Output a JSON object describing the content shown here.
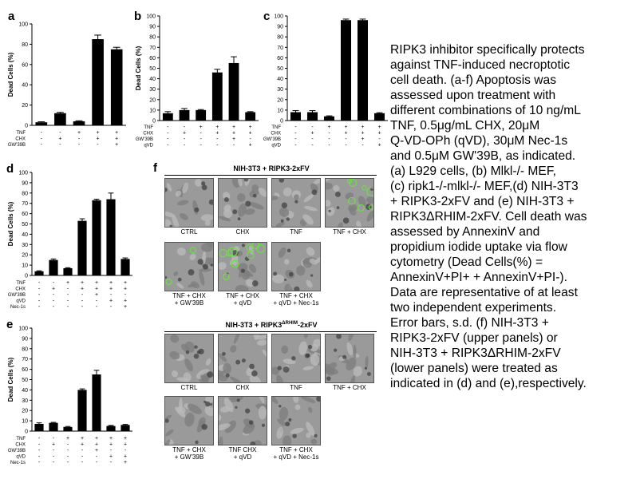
{
  "panel_labels": {
    "a": "a",
    "b": "b",
    "c": "c",
    "d": "d",
    "e": "e",
    "f": "f"
  },
  "treatment_symbols": {
    "plus": "+",
    "minus": "-"
  },
  "chart_data": [
    {
      "id": "a",
      "type": "bar",
      "ylabel": "Dead Cells (%)",
      "ylim": [
        0,
        100
      ],
      "yticks": [
        0,
        20,
        40,
        60,
        80,
        100
      ],
      "values": [
        3,
        12,
        4,
        85,
        75
      ],
      "errors": [
        0.5,
        0.8,
        0.5,
        4,
        2
      ],
      "treatments": [
        {
          "name": "TNF",
          "marks": [
            "-",
            "-",
            "+",
            "+",
            "+"
          ]
        },
        {
          "name": "CHX",
          "marks": [
            "-",
            "+",
            "-",
            "+",
            "+"
          ]
        },
        {
          "name": "GW'39B",
          "marks": [
            "-",
            "-",
            "-",
            "-",
            "+"
          ]
        }
      ]
    },
    {
      "id": "b",
      "type": "bar",
      "ylabel": "Dead Cells (%)",
      "ylim": [
        0,
        100
      ],
      "yticks": [
        0,
        10,
        20,
        30,
        40,
        50,
        60,
        70,
        80,
        90,
        100
      ],
      "values": [
        7,
        10,
        10,
        46,
        55,
        8
      ],
      "errors": [
        1.5,
        1.5,
        0.5,
        3,
        6,
        0.5
      ],
      "treatments": [
        {
          "name": "TNF",
          "marks": [
            "-",
            "-",
            "+",
            "+",
            "+",
            "+"
          ]
        },
        {
          "name": "CHX",
          "marks": [
            "-",
            "+",
            "-",
            "+",
            "+",
            "+"
          ]
        },
        {
          "name": "GW'39B",
          "marks": [
            "-",
            "-",
            "-",
            "-",
            "+",
            "-"
          ]
        },
        {
          "name": "qVD",
          "marks": [
            "-",
            "-",
            "-",
            "-",
            "-",
            "+"
          ]
        }
      ]
    },
    {
      "id": "c",
      "type": "bar",
      "ylabel": "",
      "ylim": [
        0,
        100
      ],
      "yticks": [
        0,
        10,
        20,
        30,
        40,
        50,
        60,
        70,
        80,
        90,
        100
      ],
      "values": [
        8,
        8,
        4,
        96,
        96,
        7
      ],
      "errors": [
        1.5,
        1.5,
        0.5,
        1,
        1,
        0.5
      ],
      "treatments": [
        {
          "name": "TNF",
          "marks": [
            "-",
            "-",
            "+",
            "+",
            "+",
            "+"
          ]
        },
        {
          "name": "CHX",
          "marks": [
            "-",
            "+",
            "-",
            "+",
            "+",
            "+"
          ]
        },
        {
          "name": "GW'39B",
          "marks": [
            "-",
            "-",
            "-",
            "-",
            "+",
            "-"
          ]
        },
        {
          "name": "qVD",
          "marks": [
            "-",
            "-",
            "-",
            "-",
            "-",
            "+"
          ]
        }
      ]
    },
    {
      "id": "d",
      "type": "bar",
      "ylabel": "Dead Cells (%)",
      "ylim": [
        0,
        100
      ],
      "yticks": [
        0,
        10,
        20,
        30,
        40,
        50,
        60,
        70,
        80,
        90,
        100
      ],
      "values": [
        4,
        15,
        7,
        53,
        73,
        74,
        16
      ],
      "errors": [
        0.5,
        1,
        0.5,
        2,
        1,
        6,
        1
      ],
      "treatments": [
        {
          "name": "TNF",
          "marks": [
            "-",
            "-",
            "+",
            "+",
            "+",
            "+",
            "+"
          ]
        },
        {
          "name": "CHX",
          "marks": [
            "-",
            "+",
            "-",
            "+",
            "+",
            "+",
            "+"
          ]
        },
        {
          "name": "GW'39B",
          "marks": [
            "-",
            "-",
            "-",
            "-",
            "+",
            "-",
            "-"
          ]
        },
        {
          "name": "qVD",
          "marks": [
            "-",
            "-",
            "-",
            "-",
            "-",
            "+",
            "+"
          ]
        },
        {
          "name": "Nec-1s",
          "marks": [
            "-",
            "-",
            "-",
            "-",
            "-",
            "-",
            "+"
          ]
        }
      ]
    },
    {
      "id": "e",
      "type": "bar",
      "ylabel": "Dead Cells (%)",
      "ylim": [
        0,
        100
      ],
      "yticks": [
        0,
        10,
        20,
        30,
        40,
        50,
        60,
        70,
        80,
        90,
        100
      ],
      "values": [
        7,
        8,
        4,
        40,
        55,
        5,
        6
      ],
      "errors": [
        1,
        0.5,
        0.5,
        1,
        4,
        0.5,
        0.5
      ],
      "treatments": [
        {
          "name": "TNF",
          "marks": [
            "-",
            "-",
            "+",
            "+",
            "+",
            "+",
            "+"
          ]
        },
        {
          "name": "CHX",
          "marks": [
            "-",
            "+",
            "-",
            "+",
            "+",
            "+",
            "+"
          ]
        },
        {
          "name": "GW'39B",
          "marks": [
            "-",
            "-",
            "-",
            "-",
            "+",
            "-",
            "-"
          ]
        },
        {
          "name": "qVD",
          "marks": [
            "-",
            "-",
            "-",
            "-",
            "-",
            "+",
            "+"
          ]
        },
        {
          "name": "Nec-1s",
          "marks": [
            "-",
            "-",
            "-",
            "-",
            "-",
            "-",
            "+"
          ]
        }
      ]
    }
  ],
  "micrographs": {
    "upper": {
      "title": "NIH-3T3 + RIPK3-2xFV",
      "tiles": [
        {
          "caption": "CTRL",
          "caption2": "",
          "green": 0
        },
        {
          "caption": "CHX",
          "caption2": "",
          "green": 0
        },
        {
          "caption": "TNF",
          "caption2": "",
          "green": 0
        },
        {
          "caption": "TNF + CHX",
          "caption2": "",
          "green": 7
        },
        {
          "caption": "TNF + CHX",
          "caption2": "+ GW'39B",
          "green": 2
        },
        {
          "caption": "TNF + CHX",
          "caption2": "+ qVD",
          "green": 9
        },
        {
          "caption": "TNF + CHX",
          "caption2": "+ qVD + Nec-1s",
          "green": 0
        }
      ]
    },
    "lower": {
      "title_main": "NIH-3T3 + RIPK3",
      "title_sup": "ΔRHIM",
      "title_end": "-2xFV",
      "tiles": [
        {
          "caption": "CTRL",
          "caption2": "",
          "green": 0
        },
        {
          "caption": "CHX",
          "caption2": "",
          "green": 0
        },
        {
          "caption": "TNF",
          "caption2": "",
          "green": 0
        },
        {
          "caption": "TNF + CHX",
          "caption2": "",
          "green": 0
        },
        {
          "caption": "TNF + CHX",
          "caption2": "+ GW'39B",
          "green": 0
        },
        {
          "caption": "TNF  CHX",
          "caption2": "+ qVD",
          "green": 0
        },
        {
          "caption": "TNF + CHX",
          "caption2": "+ qVD + Nec-1s",
          "green": 0
        }
      ]
    }
  },
  "caption_lines": [
    "RIPK3 inhibitor specifically protects",
    "against TNF-induced necroptotic",
    "cell death. (a-f) Apoptosis was",
    "assessed upon treatment with",
    "different combinations of 10 ng/mL",
    "TNF, 0.5μg/mL CHX, 20μM",
    "Q-VD-OPh (qVD), 30μM Nec-1s",
    "and 0.5μM GW'39B, as indicated.",
    "(a) L929 cells, (b) Mlkl-/- MEF,",
    "(c) ripk1-/-mlkl-/- MEF,(d) NIH-3T3",
    "+ RIPK3-2xFV and (e) NIH-3T3 +",
    "RIPK3ΔRHIM-2xFV. Cell death was",
    "assessed by AnnexinV and",
    "propidium iodide uptake via flow",
    "cytometry (Dead Cells(%) =",
    "AnnexinV+PI+ + AnnexinV+PI-).",
    "Data are representative of at least",
    "two independent experiments.",
    "Error bars, s.d. (f) NIH-3T3 +",
    "RIPK3-2xFV (upper panels) or",
    "NIH-3T3 + RIPK3ΔRHIM-2xFV",
    "(lower panels) were treated as",
    "indicated in (d) and (e),respectively."
  ]
}
